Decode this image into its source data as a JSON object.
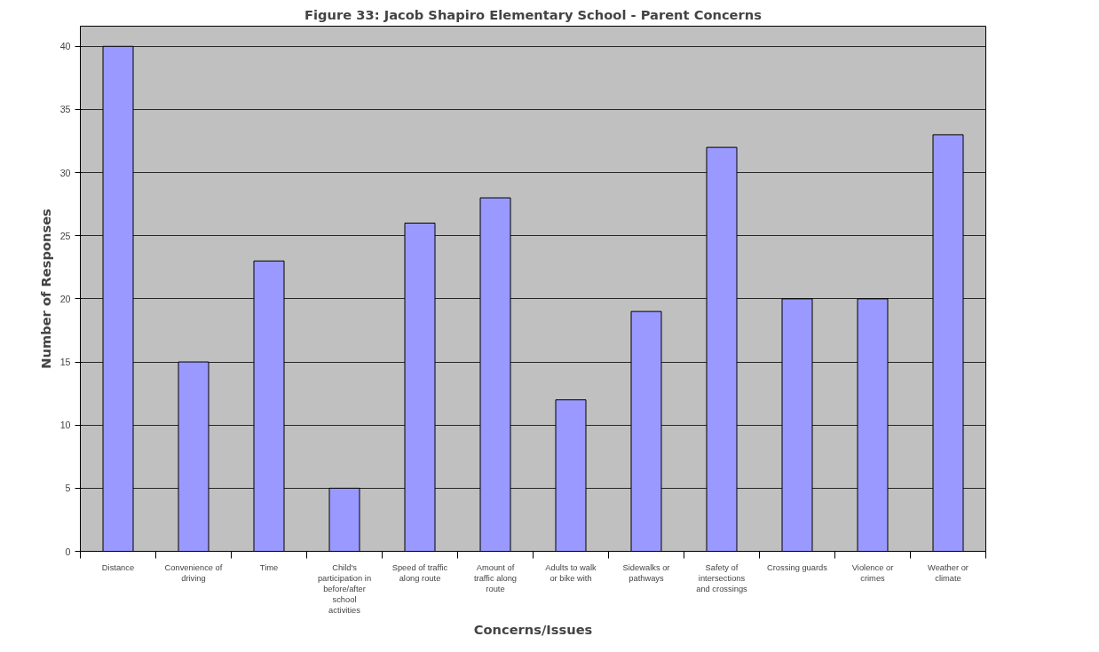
{
  "chart_data": {
    "type": "bar",
    "title": "Figure 33: Jacob Shapiro Elementary School - Parent Concerns",
    "xlabel": "Concerns/Issues",
    "ylabel": "Number of Responses",
    "categories": [
      "Distance",
      "Convenience of driving",
      "Time",
      "Child's participation in before/after school activities",
      "Speed of traffic along route",
      "Amount of traffic along route",
      "Adults to walk or bike with",
      "Sidewalks or pathways",
      "Safety of intersections and crossings",
      "Crossing guards",
      "Violence or crimes",
      "Weather or climate"
    ],
    "values": [
      40,
      15,
      23,
      5,
      26,
      28,
      12,
      19,
      32,
      20,
      20,
      33
    ],
    "color": "#9999ff",
    "ylim": [
      0,
      40
    ],
    "yticks": [
      0,
      5,
      10,
      15,
      20,
      25,
      30,
      35,
      40
    ],
    "grid": "y"
  }
}
